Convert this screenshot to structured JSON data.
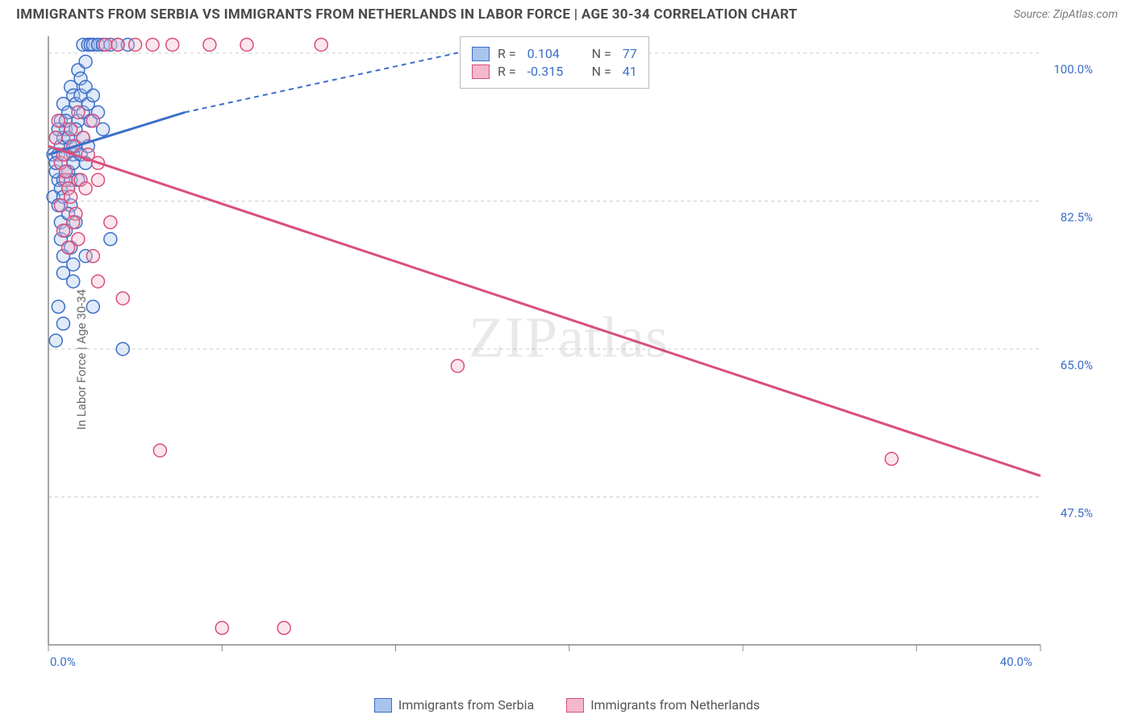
{
  "title": "IMMIGRANTS FROM SERBIA VS IMMIGRANTS FROM NETHERLANDS IN LABOR FORCE | AGE 30-34 CORRELATION CHART",
  "source": "Source: ZipAtlas.com",
  "watermark": "ZIPatlas",
  "y_axis_label": "In Labor Force | Age 30-34",
  "chart": {
    "type": "scatter",
    "background_color": "#ffffff",
    "grid_color": "#cccccc",
    "axis_color": "#888888",
    "tick_label_color": "#3b6fc9",
    "xlim": [
      0,
      40
    ],
    "ylim": [
      30,
      102
    ],
    "x_ticks": [
      0,
      7,
      14,
      21,
      28,
      35,
      40
    ],
    "x_tick_labels": {
      "0": "0.0%",
      "40": "40.0%"
    },
    "y_grid": [
      47.5,
      65.0,
      82.5,
      100.0
    ],
    "y_grid_labels": [
      "47.5%",
      "65.0%",
      "82.5%",
      "100.0%"
    ],
    "marker_radius": 8,
    "marker_stroke_width": 1.5,
    "marker_fill_opacity": 0.35,
    "series": [
      {
        "name": "Immigrants from Serbia",
        "color_stroke": "#3b6fc9",
        "color_fill": "#a9c4ec",
        "r_value": "0.104",
        "n_value": "77",
        "trend": {
          "x1": 0,
          "y1": 88,
          "x2_solid": 5.5,
          "y2_solid": 93,
          "x2_dash": 18,
          "y2_dash": 101
        },
        "points": [
          [
            0.2,
            88
          ],
          [
            0.3,
            90
          ],
          [
            0.4,
            85
          ],
          [
            0.5,
            92
          ],
          [
            0.3,
            86
          ],
          [
            0.6,
            94
          ],
          [
            0.4,
            88
          ],
          [
            0.7,
            91
          ],
          [
            0.2,
            83
          ],
          [
            0.5,
            89
          ],
          [
            0.8,
            93
          ],
          [
            0.3,
            87
          ],
          [
            0.6,
            85
          ],
          [
            0.4,
            82
          ],
          [
            0.9,
            96
          ],
          [
            0.5,
            84
          ],
          [
            0.7,
            88
          ],
          [
            1.0,
            95
          ],
          [
            0.6,
            90
          ],
          [
            0.8,
            86
          ],
          [
            1.2,
            98
          ],
          [
            0.4,
            91
          ],
          [
            0.9,
            89
          ],
          [
            1.1,
            94
          ],
          [
            0.5,
            80
          ],
          [
            0.7,
            92
          ],
          [
            1.3,
            97
          ],
          [
            0.6,
            83
          ],
          [
            1.0,
            88
          ],
          [
            0.8,
            90
          ],
          [
            1.4,
            101
          ],
          [
            0.9,
            85
          ],
          [
            1.2,
            92
          ],
          [
            0.5,
            78
          ],
          [
            1.5,
            99
          ],
          [
            0.7,
            86
          ],
          [
            1.1,
            91
          ],
          [
            0.6,
            76
          ],
          [
            1.6,
            101
          ],
          [
            0.8,
            84
          ],
          [
            1.3,
            95
          ],
          [
            0.9,
            82
          ],
          [
            1.7,
            101
          ],
          [
            1.0,
            87
          ],
          [
            1.4,
            93
          ],
          [
            0.6,
            74
          ],
          [
            1.8,
            101
          ],
          [
            1.1,
            89
          ],
          [
            1.5,
            96
          ],
          [
            0.7,
            79
          ],
          [
            2.0,
            101
          ],
          [
            1.2,
            85
          ],
          [
            1.6,
            94
          ],
          [
            0.8,
            81
          ],
          [
            2.2,
            101
          ],
          [
            1.3,
            88
          ],
          [
            1.7,
            92
          ],
          [
            0.9,
            77
          ],
          [
            2.5,
            101
          ],
          [
            1.4,
            90
          ],
          [
            1.8,
            95
          ],
          [
            1.0,
            75
          ],
          [
            2.8,
            101
          ],
          [
            1.5,
            87
          ],
          [
            2.0,
            93
          ],
          [
            1.1,
            80
          ],
          [
            3.2,
            101
          ],
          [
            1.6,
            89
          ],
          [
            2.2,
            91
          ],
          [
            0.4,
            70
          ],
          [
            0.6,
            68
          ],
          [
            1.0,
            73
          ],
          [
            1.5,
            76
          ],
          [
            2.5,
            78
          ],
          [
            3.0,
            65
          ],
          [
            0.3,
            66
          ],
          [
            1.8,
            70
          ]
        ]
      },
      {
        "name": "Immigrants from Netherlands",
        "color_stroke": "#d94f7a",
        "color_fill": "#f4b8ca",
        "r_value": "-0.315",
        "n_value": "41",
        "trend": {
          "x1": 0,
          "y1": 89,
          "x2_solid": 40,
          "y2_solid": 50,
          "x2_dash": 40,
          "y2_dash": 50
        },
        "points": [
          [
            0.3,
            90
          ],
          [
            0.5,
            87
          ],
          [
            0.4,
            92
          ],
          [
            0.7,
            85
          ],
          [
            0.6,
            88
          ],
          [
            0.9,
            91
          ],
          [
            0.8,
            84
          ],
          [
            1.0,
            89
          ],
          [
            0.5,
            82
          ],
          [
            1.2,
            93
          ],
          [
            0.7,
            86
          ],
          [
            1.4,
            90
          ],
          [
            0.9,
            83
          ],
          [
            1.6,
            88
          ],
          [
            1.1,
            81
          ],
          [
            1.8,
            92
          ],
          [
            1.3,
            85
          ],
          [
            2.0,
            87
          ],
          [
            0.6,
            79
          ],
          [
            2.3,
            101
          ],
          [
            1.0,
            80
          ],
          [
            2.8,
            101
          ],
          [
            1.5,
            84
          ],
          [
            3.5,
            101
          ],
          [
            0.8,
            77
          ],
          [
            4.2,
            101
          ],
          [
            1.2,
            78
          ],
          [
            5.0,
            101
          ],
          [
            2.0,
            85
          ],
          [
            6.5,
            101
          ],
          [
            2.5,
            80
          ],
          [
            8.0,
            101
          ],
          [
            11.0,
            101
          ],
          [
            2.0,
            73
          ],
          [
            3.0,
            71
          ],
          [
            16.5,
            63
          ],
          [
            4.5,
            53
          ],
          [
            34.0,
            52
          ],
          [
            7.0,
            32
          ],
          [
            9.5,
            32
          ],
          [
            1.8,
            76
          ]
        ]
      }
    ]
  },
  "legend_bottom": {
    "items": [
      {
        "label": "Immigrants from Serbia",
        "stroke": "#3b6fc9",
        "fill": "#a9c4ec"
      },
      {
        "label": "Immigrants from Netherlands",
        "stroke": "#d94f7a",
        "fill": "#f4b8ca"
      }
    ]
  },
  "r_legend": {
    "r_label": "R =",
    "n_label": "N ="
  }
}
